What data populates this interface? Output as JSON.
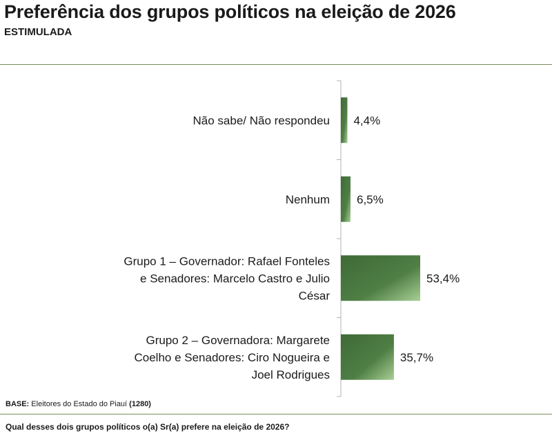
{
  "header": {
    "title": "Preferência dos grupos políticos na eleição de 2026",
    "subtitle": "ESTIMULADA"
  },
  "chart_data": {
    "type": "bar",
    "orientation": "horizontal",
    "title": "Preferência dos grupos políticos na eleição de 2026",
    "subtitle": "ESTIMULADA",
    "xlabel": "",
    "ylabel": "",
    "xlim": [
      0,
      100
    ],
    "grid": false,
    "categories": [
      [
        "Não sabe/ Não respondeu"
      ],
      [
        "Nenhum"
      ],
      [
        "Grupo 1 – Governador: Rafael Fonteles",
        "e Senadores: Marcelo Castro e Julio",
        "César"
      ],
      [
        "Grupo 2 – Governadora: Margarete",
        "Coelho e Senadores: Ciro Nogueira e",
        "Joel Rodrigues"
      ]
    ],
    "values": [
      4.4,
      6.5,
      53.4,
      35.7
    ],
    "value_labels": [
      "4,4%",
      "6,5%",
      "53,4%",
      "35,7%"
    ],
    "bar_colors": [
      "#3e6a36",
      "#a9cf95"
    ]
  },
  "footer": {
    "base_label": "BASE:",
    "base_text": "Eleitores do Estado do Piauí",
    "base_count": "(1280)",
    "question": "Qual desses dois grupos políticos o(a) Sr(a) prefere na eleição de 2026?"
  }
}
